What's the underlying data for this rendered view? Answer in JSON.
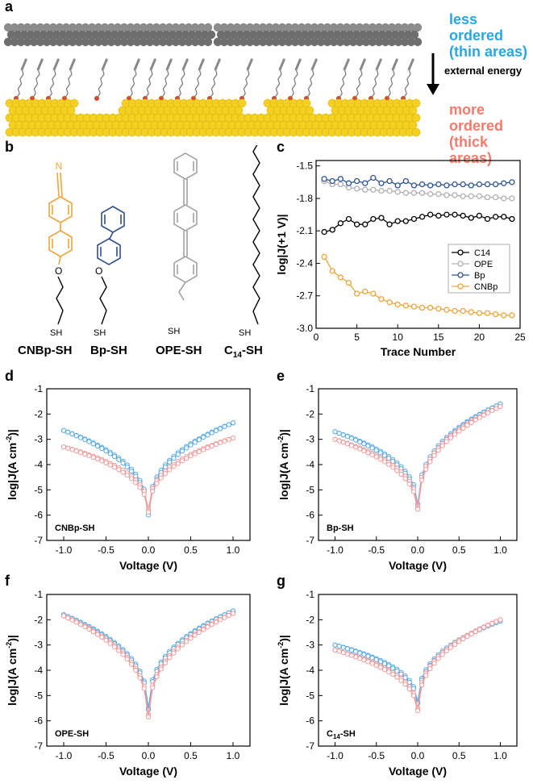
{
  "panels": {
    "a": "a",
    "b": "b",
    "c": "c",
    "d": "d",
    "e": "e",
    "f": "f",
    "g": "g"
  },
  "schematic": {
    "less_ordered_1": "less ordered",
    "less_ordered_2": "(thin areas)",
    "external_energy": "external energy",
    "more_ordered_1": "more ordered",
    "more_ordered_2": "(thick areas)",
    "colors": {
      "less": "#2aa7df",
      "more": "#f37b6d",
      "gold": "#f4d020",
      "gray": "#6e6e6e",
      "oxygen": "#e0432a"
    }
  },
  "molecules": {
    "cnbp": {
      "name": "CNBp-SH",
      "N": "N",
      "O": "O",
      "SH": "SH",
      "color": "#f0a43a"
    },
    "bp": {
      "name": "Bp-SH",
      "O": "O",
      "SH": "SH",
      "color": "#2f4f8a"
    },
    "ope": {
      "name": "OPE-SH",
      "SH": "SH",
      "color": "#9a9a9a"
    },
    "c14": {
      "name_main": "C",
      "name_sub": "14",
      "name_suffix": "-SH",
      "SH": "SH",
      "color": "#000000"
    }
  },
  "chart_data": [
    {
      "panel": "c",
      "type": "line",
      "xlabel": "Trace Number",
      "ylabel": "log|J(+1 V)|",
      "xlim": [
        0,
        25
      ],
      "ylim": [
        -3.0,
        -1.45
      ],
      "xticks": [
        0,
        5,
        10,
        15,
        20,
        25
      ],
      "yticks": [
        -1.5,
        -1.8,
        -2.1,
        -2.4,
        -2.7,
        -3.0
      ],
      "ytick_labels": [
        "-1.5",
        "-1.8",
        "-2.1",
        "-2.4",
        "-2.7",
        "-3.0"
      ],
      "legend_position": "right",
      "x": [
        1,
        2,
        3,
        4,
        5,
        6,
        7,
        8,
        9,
        10,
        11,
        12,
        13,
        14,
        15,
        16,
        17,
        18,
        19,
        20,
        21,
        22,
        23,
        24
      ],
      "series": [
        {
          "name": "C14",
          "color": "#000000",
          "values": [
            -2.11,
            -2.09,
            -2.03,
            -1.99,
            -2.04,
            -2.04,
            -1.99,
            -1.98,
            -2.04,
            -2.01,
            -2.01,
            -1.99,
            -1.97,
            -1.95,
            -1.96,
            -1.95,
            -1.95,
            -1.96,
            -1.98,
            -1.96,
            -1.99,
            -1.97,
            -1.97,
            -1.99
          ]
        },
        {
          "name": "OPE",
          "color": "#b0b0b0",
          "values": [
            -1.64,
            -1.67,
            -1.67,
            -1.7,
            -1.71,
            -1.72,
            -1.72,
            -1.73,
            -1.73,
            -1.74,
            -1.75,
            -1.75,
            -1.75,
            -1.76,
            -1.76,
            -1.77,
            -1.77,
            -1.78,
            -1.78,
            -1.78,
            -1.79,
            -1.79,
            -1.8,
            -1.8
          ]
        },
        {
          "name": "Bp",
          "color": "#2f5596",
          "values": [
            -1.62,
            -1.64,
            -1.62,
            -1.66,
            -1.64,
            -1.66,
            -1.61,
            -1.66,
            -1.64,
            -1.68,
            -1.64,
            -1.68,
            -1.67,
            -1.68,
            -1.67,
            -1.68,
            -1.67,
            -1.67,
            -1.68,
            -1.67,
            -1.67,
            -1.67,
            -1.66,
            -1.65
          ]
        },
        {
          "name": "CNBp",
          "color": "#f0a43a",
          "values": [
            -2.34,
            -2.47,
            -2.53,
            -2.58,
            -2.68,
            -2.66,
            -2.68,
            -2.73,
            -2.76,
            -2.78,
            -2.79,
            -2.8,
            -2.81,
            -2.81,
            -2.82,
            -2.83,
            -2.84,
            -2.84,
            -2.85,
            -2.86,
            -2.86,
            -2.87,
            -2.88,
            -2.88
          ]
        }
      ]
    },
    {
      "panel": "d",
      "type": "line",
      "annotation": "CNBp-SH",
      "xlabel": "Voltage (V)",
      "ylabel_main": "log|J",
      "ylabel_unit": "(A cm",
      "ylabel_sup": "-2",
      "ylabel_end": ")|",
      "xlim": [
        -1.2,
        1.2
      ],
      "ylim": [
        -7,
        -1
      ],
      "xticks": [
        -1.0,
        -0.5,
        0.0,
        0.5,
        1.0
      ],
      "xtick_labels": [
        "-1.0",
        "-0.5",
        "0.0",
        "0.5",
        "1.0"
      ],
      "yticks": [
        -1,
        -2,
        -3,
        -4,
        -5,
        -6,
        -7
      ],
      "ytick_labels": [
        "-1",
        "-2",
        "-3",
        "-4",
        "-5",
        "-6",
        "-7"
      ],
      "series": [
        {
          "name": "blue",
          "color": "#5aaae6",
          "params": {
            "left": -2.65,
            "right": -2.35,
            "min": -6.3,
            "w": 0.85,
            "spread": 0.1
          }
        },
        {
          "name": "pink",
          "color": "#f29a9a",
          "params": {
            "left": -3.3,
            "right": -2.95,
            "min": -6.1,
            "w": 0.9,
            "spread": 0.12
          }
        }
      ]
    },
    {
      "panel": "e",
      "type": "line",
      "annotation": "Bp-SH",
      "xlabel": "Voltage (V)",
      "ylabel_main": "log|J",
      "ylabel_unit": "(A cm",
      "ylabel_sup": "-2",
      "ylabel_end": ")|",
      "xlim": [
        -1.2,
        1.2
      ],
      "ylim": [
        -7,
        -1
      ],
      "xticks": [
        -1.0,
        -0.5,
        0.0,
        0.5,
        1.0
      ],
      "xtick_labels": [
        "-1.0",
        "-0.5",
        "0.0",
        "0.5",
        "1.0"
      ],
      "yticks": [
        -1,
        -2,
        -3,
        -4,
        -5,
        -6,
        -7
      ],
      "ytick_labels": [
        "-1",
        "-2",
        "-3",
        "-4",
        "-5",
        "-6",
        "-7"
      ],
      "series": [
        {
          "name": "blue",
          "color": "#5aaae6",
          "params": {
            "left": -2.7,
            "right": -1.6,
            "min": -6.0,
            "w": 0.8,
            "spread": 0.1
          }
        },
        {
          "name": "pink",
          "color": "#f29a9a",
          "params": {
            "left": -3.0,
            "right": -1.7,
            "min": -6.1,
            "w": 0.85,
            "spread": 0.12
          }
        }
      ]
    },
    {
      "panel": "f",
      "type": "line",
      "annotation": "OPE-SH",
      "xlabel": "Voltage (V)",
      "ylabel_main": "log|J",
      "ylabel_unit": "(A cm",
      "ylabel_sup": "-2",
      "ylabel_end": ")|",
      "xlim": [
        -1.2,
        1.2
      ],
      "ylim": [
        -7,
        -1
      ],
      "xticks": [
        -1.0,
        -0.5,
        0.0,
        0.5,
        1.0
      ],
      "xtick_labels": [
        "-1.0",
        "-0.5",
        "0.0",
        "0.5",
        "1.0"
      ],
      "yticks": [
        -1,
        -2,
        -3,
        -4,
        -5,
        -6,
        -7
      ],
      "ytick_labels": [
        "-1",
        "-2",
        "-3",
        "-4",
        "-5",
        "-6",
        "-7"
      ],
      "series": [
        {
          "name": "blue",
          "color": "#5aaae6",
          "params": {
            "left": -1.8,
            "right": -1.65,
            "min": -5.9,
            "w": 0.75,
            "spread": 0.08
          }
        },
        {
          "name": "pink",
          "color": "#f29a9a",
          "params": {
            "left": -1.85,
            "right": -1.75,
            "min": -6.2,
            "w": 0.8,
            "spread": 0.1
          }
        }
      ]
    },
    {
      "panel": "g",
      "type": "line",
      "annotation_main": "C",
      "annotation_sub": "14",
      "annotation_suffix": "-SH",
      "xlabel": "Voltage (V)",
      "ylabel_main": "log|J",
      "ylabel_unit": "(A cm",
      "ylabel_sup": "-2",
      "ylabel_end": ")|",
      "xlim": [
        -1.2,
        1.2
      ],
      "ylim": [
        -7,
        -1
      ],
      "xticks": [
        -1.0,
        -0.5,
        0.0,
        0.5,
        1.0
      ],
      "xtick_labels": [
        "-1.0",
        "-0.5",
        "0.0",
        "0.5",
        "1.0"
      ],
      "yticks": [
        -1,
        -2,
        -3,
        -4,
        -5,
        -6,
        -7
      ],
      "ytick_labels": [
        "-1",
        "-2",
        "-3",
        "-4",
        "-5",
        "-6",
        "-7"
      ],
      "series": [
        {
          "name": "blue",
          "color": "#5aaae6",
          "params": {
            "left": -3.0,
            "right": -2.05,
            "min": -5.6,
            "w": 0.7,
            "spread": 0.08
          }
        },
        {
          "name": "pink",
          "color": "#f29a9a",
          "params": {
            "left": -3.2,
            "right": -2.0,
            "min": -5.9,
            "w": 0.75,
            "spread": 0.1
          }
        }
      ]
    }
  ]
}
